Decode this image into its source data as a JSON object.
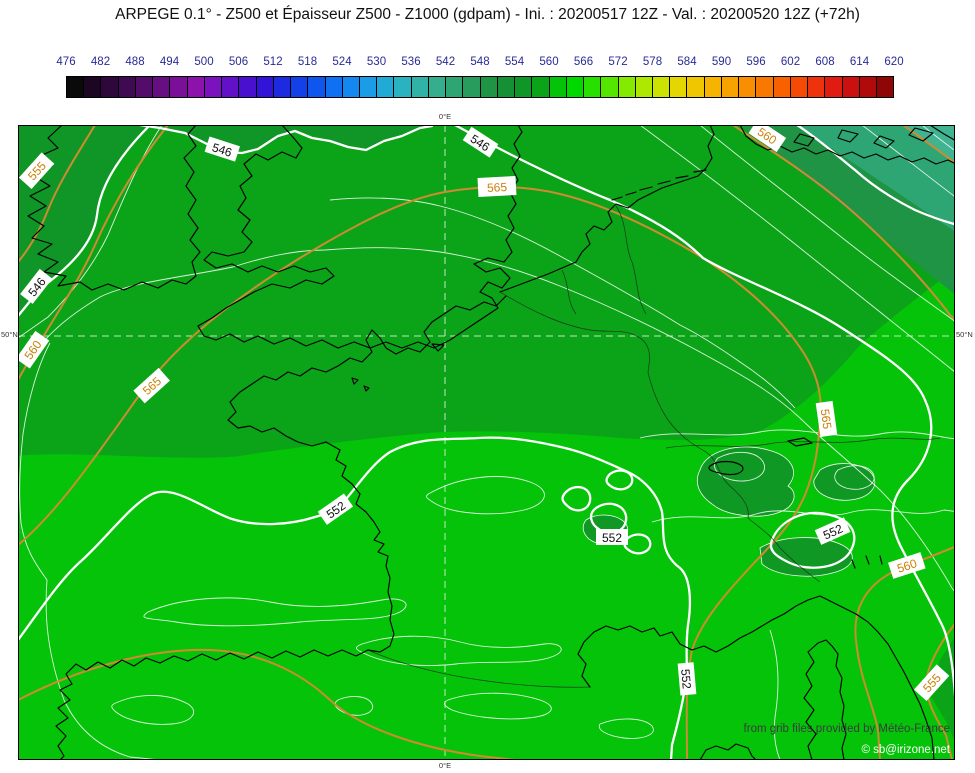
{
  "title": "ARPEGE 0.1° - Z500 et Épaisseur Z500 - Z1000 (gdpam) - Ini. : 20200517 12Z - Val. : 20200520 12Z (+72h)",
  "colorbar": {
    "tick_labels": [
      "476",
      "482",
      "488",
      "494",
      "500",
      "506",
      "512",
      "518",
      "524",
      "530",
      "536",
      "542",
      "548",
      "554",
      "560",
      "566",
      "572",
      "578",
      "584",
      "590",
      "596",
      "602",
      "608",
      "614",
      "620"
    ],
    "min": 476,
    "max": 620,
    "units": "gdpam",
    "segments": 48,
    "step_per_segment": 3,
    "segment_colors": [
      "#0a0a0a",
      "#1c0622",
      "#2e083a",
      "#400a52",
      "#530c6a",
      "#660e82",
      "#7a1098",
      "#8c12ac",
      "#7a12be",
      "#6211c8",
      "#4a10d0",
      "#3213d8",
      "#1e2ae0",
      "#1440e8",
      "#0e56ee",
      "#1070f2",
      "#1488f0",
      "#1a9ce6",
      "#22aad6",
      "#2ab2c0",
      "#30b2a6",
      "#34ae8c",
      "#2ea674",
      "#289c5c",
      "#1e9444",
      "#169034",
      "#109626",
      "#0ba418",
      "#05c309",
      "#00d800",
      "#28e000",
      "#55e600",
      "#84ea00",
      "#ace800",
      "#cce200",
      "#e4d600",
      "#f0c600",
      "#f6b400",
      "#f8a200",
      "#f98e00",
      "#f97800",
      "#f86000",
      "#f54a04",
      "#ee320c",
      "#e01c12",
      "#cc1010",
      "#b00a0a",
      "#8e0606"
    ]
  },
  "map": {
    "axis_labels": {
      "top": "0°E",
      "bottom": "0°E",
      "left": "50°N",
      "right": "50°N"
    },
    "attribution": "from grib files provided by Météo-France",
    "copyright": "© sb@irizone.net",
    "colors": {
      "fill-base": "#05c309",
      "fill-north": "#0ba418",
      "fill-dark": "#109626",
      "fill-ne1": "#40b491",
      "fill-ne2": "#2ea674",
      "fill-ne3": "#1e9444",
      "coast": "#000000",
      "border-line": "#1c1c1c",
      "z500-line": "#ffffff",
      "thickness-line": "#cd8b32",
      "label-z500-text": "#111111",
      "label-thickness-text": "#c8820a",
      "label-bg": "#ffffff",
      "grid-line": "#dff0df",
      "frame": "#000000",
      "attribution-text": "#3b3b3b",
      "copyright-text": "#ffffff",
      "tick-text": "#2a2a96"
    },
    "contour_labels": [
      {
        "text": "546",
        "kind": "z500"
      },
      {
        "text": "546",
        "kind": "z500"
      },
      {
        "text": "546",
        "kind": "z500"
      },
      {
        "text": "552",
        "kind": "z500"
      },
      {
        "text": "552",
        "kind": "z500"
      },
      {
        "text": "552",
        "kind": "z500"
      },
      {
        "text": "552",
        "kind": "z500"
      },
      {
        "text": "555",
        "kind": "thickness"
      },
      {
        "text": "560",
        "kind": "thickness"
      },
      {
        "text": "565",
        "kind": "thickness"
      },
      {
        "text": "565",
        "kind": "thickness"
      },
      {
        "text": "565",
        "kind": "thickness"
      },
      {
        "text": "560",
        "kind": "thickness"
      },
      {
        "text": "560",
        "kind": "thickness"
      },
      {
        "text": "555",
        "kind": "thickness"
      }
    ]
  },
  "chart_data": {
    "type": "contour-map",
    "model": "ARPEGE 0.1°",
    "fields": [
      "Z500 geopotential (white contours, gdpam)",
      "Z500 - Z1000 thickness (orange contours & color fill, gdpam)"
    ],
    "init": "20200517 12Z",
    "valid": "20200520 12Z (+72h)",
    "lead_hours": 72,
    "z500_contour_labels_gdpam": [
      546,
      552
    ],
    "thickness_contour_labels_gdpam": [
      555,
      560,
      565
    ],
    "colorbar_range_gdpam": [
      476,
      620
    ],
    "gridlines": {
      "longitude": "0°E",
      "latitude": "50°N"
    },
    "region": "Western Europe / France"
  }
}
